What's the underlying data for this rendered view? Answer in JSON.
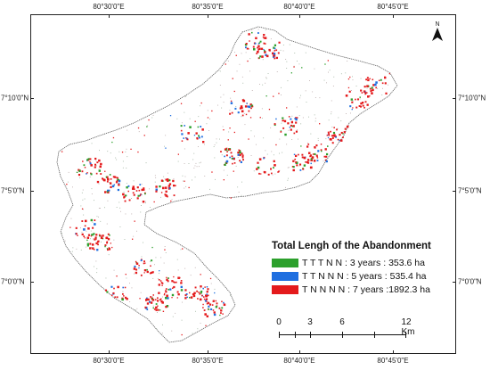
{
  "map": {
    "colors": {
      "green": "#2ca02c",
      "blue": "#1f6fe0",
      "red": "#e41a1c",
      "outline": "#555555"
    },
    "graticule": {
      "top_labels": [
        "80°30'0\"E",
        "80°35'0\"E",
        "80°40'0\"E",
        "80°45'0\"E"
      ],
      "bottom_labels": [
        "80°30'0\"E",
        "80°35'0\"E",
        "80°40'0\"E",
        "80°45'0\"E"
      ],
      "left_labels": [
        "7°10'0\"N",
        "7°5'0\"N",
        "7°0'0\"N"
      ],
      "right_labels": [
        "7°10'0\"N",
        "7°5'0\"N",
        "7°0'0\"N"
      ]
    },
    "north_arrow": {
      "letter": "N",
      "icon": "north-arrow-icon"
    },
    "legend": {
      "title": "Total Lengh of the Abandonment",
      "items": [
        {
          "label": "T T T N N : 3 years : 353.6 ha",
          "color": "#2ca02c"
        },
        {
          "label": "T T N N N : 5 years : 535.4 ha",
          "color": "#1f6fe0"
        },
        {
          "label": "T N N N N : 7 years :1892.3 ha",
          "color": "#e41a1c"
        }
      ]
    },
    "scale_bar": {
      "labels": [
        "0",
        "3",
        "6",
        "12 Km"
      ]
    }
  }
}
